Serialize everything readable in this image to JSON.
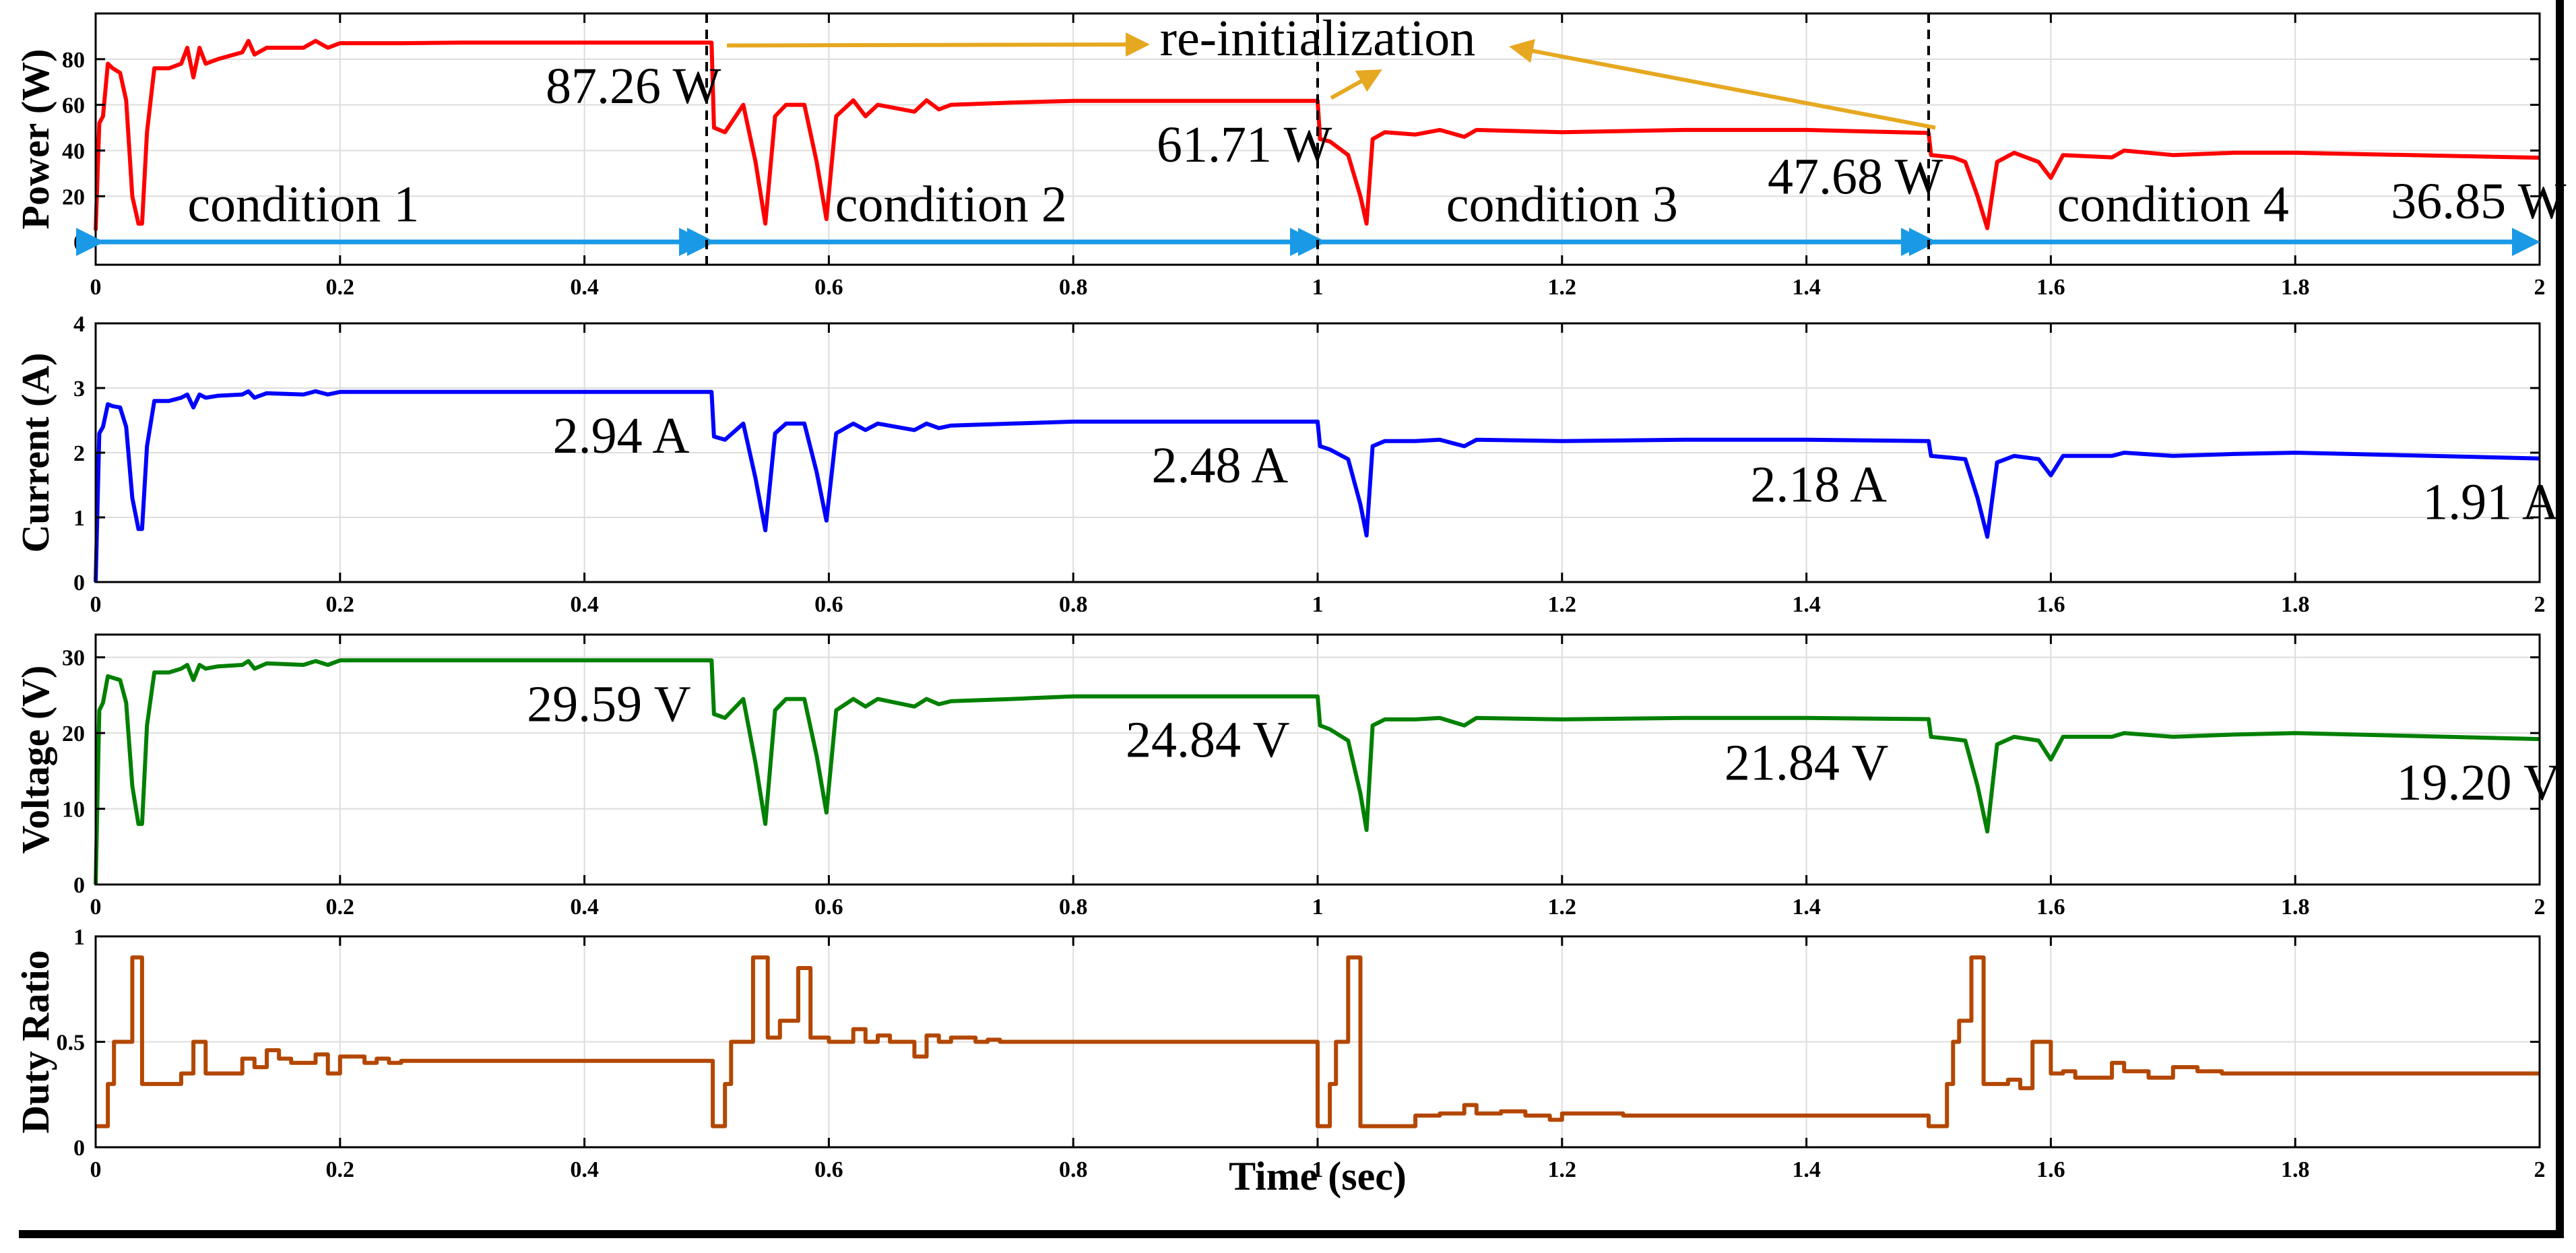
{
  "chart_data": {
    "type": "line",
    "xlabel": "Time (sec)",
    "xlim": [
      0,
      2
    ],
    "xticks": [
      "0",
      "0.2",
      "0.4",
      "0.6",
      "0.8",
      "1",
      "1.2",
      "1.4",
      "1.6",
      "1.8",
      "2"
    ],
    "xtick_values": [
      0,
      0.2,
      0.4,
      0.6,
      0.8,
      1.0,
      1.2,
      1.4,
      1.6,
      1.8,
      2.0
    ],
    "colors": {
      "power": "#ff0000",
      "current": "#0000ff",
      "voltage": "#008000",
      "duty": "#b34700",
      "condition_arrow": "#1a9ae6",
      "reinit_arrow": "#e6a820"
    },
    "panels": [
      {
        "id": "power",
        "ylabel": "Power (W)",
        "ylim": [
          -10,
          100
        ],
        "yticks": [
          "0",
          "20",
          "40",
          "60",
          "80"
        ],
        "ytick_values": [
          0,
          20,
          40,
          60,
          80
        ],
        "series": [
          {
            "name": "Power",
            "x": [
              0,
              0.003,
              0.006,
              0.01,
              0.014,
              0.02,
              0.025,
              0.03,
              0.035,
              0.038,
              0.042,
              0.048,
              0.06,
              0.07,
              0.075,
              0.08,
              0.085,
              0.09,
              0.1,
              0.12,
              0.125,
              0.13,
              0.14,
              0.17,
              0.18,
              0.19,
              0.2,
              0.25,
              0.3,
              0.4,
              0.504,
              0.506,
              0.515,
              0.53,
              0.54,
              0.548,
              0.556,
              0.565,
              0.58,
              0.59,
              0.598,
              0.606,
              0.62,
              0.63,
              0.64,
              0.67,
              0.68,
              0.69,
              0.7,
              0.75,
              0.8,
              1.0,
              1.002,
              1.01,
              1.025,
              1.035,
              1.04,
              1.045,
              1.055,
              1.08,
              1.1,
              1.12,
              1.13,
              1.2,
              1.3,
              1.4,
              1.5,
              1.502,
              1.52,
              1.53,
              1.54,
              1.548,
              1.556,
              1.57,
              1.59,
              1.6,
              1.61,
              1.65,
              1.66,
              1.7,
              1.75,
              1.8,
              2.0
            ],
            "y": [
              5,
              52,
              55,
              78,
              76,
              74,
              62,
              20,
              8,
              8,
              48,
              76,
              76,
              78,
              85,
              72,
              85,
              78,
              80,
              83,
              88,
              82,
              85,
              85,
              88,
              85,
              87,
              87,
              87.26,
              87.26,
              87.26,
              50,
              48,
              60,
              35,
              8,
              55,
              60,
              60,
              35,
              10,
              55,
              62,
              55,
              60,
              57,
              62,
              58,
              60,
              61,
              61.71,
              61.71,
              45,
              44,
              38,
              20,
              8,
              45,
              48,
              47,
              49,
              46,
              49,
              48,
              49,
              49,
              47.68,
              38,
              37,
              35,
              20,
              6,
              35,
              39,
              35,
              28,
              38,
              37,
              40,
              38,
              39,
              39,
              36.85
            ]
          }
        ],
        "annotations": [
          {
            "text": "87.26 W",
            "x": 0.44,
            "y": 87.26
          },
          {
            "text": "61.71 W",
            "x": 0.94,
            "y": 61.71
          },
          {
            "text": "47.68 W",
            "x": 1.44,
            "y": 47.68
          },
          {
            "text": "36.85 W",
            "x": 1.95,
            "y": 36.85
          },
          {
            "text": "condition 1",
            "x": 0.17,
            "y": 9
          },
          {
            "text": "condition 2",
            "x": 0.7,
            "y": 9
          },
          {
            "text": "condition 3",
            "x": 1.2,
            "y": 9
          },
          {
            "text": "condition 4",
            "x": 1.7,
            "y": 9
          },
          {
            "text": "re-initialization",
            "x": 1.0,
            "y": 100
          }
        ],
        "condition_ranges": [
          [
            0,
            0.5
          ],
          [
            0.5,
            1.0
          ],
          [
            1.0,
            1.5
          ],
          [
            1.5,
            2.0
          ]
        ],
        "reinit_times": [
          0.5,
          1.0,
          1.5
        ]
      },
      {
        "id": "current",
        "ylabel": "Current (A)",
        "ylim": [
          0,
          4
        ],
        "yticks": [
          "0",
          "1",
          "2",
          "3",
          "4"
        ],
        "ytick_values": [
          0,
          1,
          2,
          3,
          4
        ],
        "series": [
          {
            "name": "Current",
            "x": [
              0,
              0.003,
              0.006,
              0.01,
              0.014,
              0.02,
              0.025,
              0.03,
              0.035,
              0.038,
              0.042,
              0.048,
              0.06,
              0.07,
              0.075,
              0.08,
              0.085,
              0.09,
              0.1,
              0.12,
              0.125,
              0.13,
              0.14,
              0.17,
              0.18,
              0.19,
              0.2,
              0.25,
              0.3,
              0.4,
              0.504,
              0.506,
              0.515,
              0.53,
              0.54,
              0.548,
              0.556,
              0.565,
              0.58,
              0.59,
              0.598,
              0.606,
              0.62,
              0.63,
              0.64,
              0.67,
              0.68,
              0.69,
              0.7,
              0.75,
              0.8,
              1.0,
              1.002,
              1.01,
              1.025,
              1.035,
              1.04,
              1.045,
              1.055,
              1.08,
              1.1,
              1.12,
              1.13,
              1.2,
              1.3,
              1.4,
              1.5,
              1.502,
              1.52,
              1.53,
              1.54,
              1.548,
              1.556,
              1.57,
              1.59,
              1.6,
              1.61,
              1.65,
              1.66,
              1.7,
              1.75,
              1.8,
              2.0
            ],
            "y": [
              0,
              2.3,
              2.4,
              2.75,
              2.72,
              2.7,
              2.4,
              1.3,
              0.82,
              0.82,
              2.1,
              2.8,
              2.8,
              2.85,
              2.9,
              2.7,
              2.9,
              2.85,
              2.88,
              2.9,
              2.95,
              2.85,
              2.92,
              2.9,
              2.95,
              2.9,
              2.94,
              2.94,
              2.94,
              2.94,
              2.94,
              2.25,
              2.2,
              2.45,
              1.6,
              0.8,
              2.3,
              2.45,
              2.45,
              1.7,
              0.95,
              2.3,
              2.45,
              2.35,
              2.45,
              2.35,
              2.45,
              2.38,
              2.42,
              2.45,
              2.48,
              2.48,
              2.1,
              2.05,
              1.9,
              1.2,
              0.72,
              2.1,
              2.18,
              2.18,
              2.2,
              2.1,
              2.2,
              2.18,
              2.2,
              2.2,
              2.18,
              1.95,
              1.92,
              1.9,
              1.3,
              0.7,
              1.85,
              1.95,
              1.9,
              1.65,
              1.95,
              1.95,
              2.0,
              1.95,
              1.98,
              2.0,
              1.91
            ]
          }
        ],
        "annotations": [
          {
            "text": "2.94 A",
            "x": 0.43,
            "y": 2.94
          },
          {
            "text": "2.48 A",
            "x": 0.92,
            "y": 2.48
          },
          {
            "text": "2.18 A",
            "x": 1.41,
            "y": 2.18
          },
          {
            "text": "1.91 A",
            "x": 1.96,
            "y": 1.91
          }
        ]
      },
      {
        "id": "voltage",
        "ylabel": "Voltage (V)",
        "ylim": [
          0,
          33
        ],
        "yticks": [
          "0",
          "10",
          "20",
          "30"
        ],
        "ytick_values": [
          0,
          10,
          20,
          30
        ],
        "series": [
          {
            "name": "Voltage",
            "x": [
              0,
              0.003,
              0.006,
              0.01,
              0.014,
              0.02,
              0.025,
              0.03,
              0.035,
              0.038,
              0.042,
              0.048,
              0.06,
              0.07,
              0.075,
              0.08,
              0.085,
              0.09,
              0.1,
              0.12,
              0.125,
              0.13,
              0.14,
              0.17,
              0.18,
              0.19,
              0.2,
              0.25,
              0.3,
              0.4,
              0.504,
              0.506,
              0.515,
              0.53,
              0.54,
              0.548,
              0.556,
              0.565,
              0.58,
              0.59,
              0.598,
              0.606,
              0.62,
              0.63,
              0.64,
              0.67,
              0.68,
              0.69,
              0.7,
              0.75,
              0.8,
              1.0,
              1.002,
              1.01,
              1.025,
              1.035,
              1.04,
              1.045,
              1.055,
              1.08,
              1.1,
              1.12,
              1.13,
              1.2,
              1.3,
              1.4,
              1.5,
              1.502,
              1.52,
              1.53,
              1.54,
              1.548,
              1.556,
              1.57,
              1.59,
              1.6,
              1.61,
              1.65,
              1.66,
              1.7,
              1.75,
              1.8,
              2.0
            ],
            "y": [
              0,
              23,
              24,
              27.5,
              27.3,
              27,
              24,
              13,
              8,
              8,
              21,
              28,
              28,
              28.5,
              29,
              27,
              29,
              28.5,
              28.8,
              29,
              29.5,
              28.5,
              29.2,
              29,
              29.5,
              29,
              29.59,
              29.59,
              29.59,
              29.59,
              29.59,
              22.5,
              22,
              24.5,
              16,
              8,
              23,
              24.5,
              24.5,
              17,
              9.5,
              23,
              24.5,
              23.5,
              24.5,
              23.5,
              24.5,
              23.8,
              24.2,
              24.5,
              24.84,
              24.84,
              21,
              20.5,
              19,
              12,
              7.2,
              21,
              21.8,
              21.8,
              22,
              21,
              22,
              21.8,
              22,
              22,
              21.84,
              19.5,
              19.2,
              19,
              13,
              7,
              18.5,
              19.5,
              19,
              16.5,
              19.5,
              19.5,
              20,
              19.5,
              19.8,
              20,
              19.2
            ]
          }
        ],
        "annotations": [
          {
            "text": "29.59 V",
            "x": 0.42,
            "y": 29.59
          },
          {
            "text": "24.84 V",
            "x": 0.91,
            "y": 24.84
          },
          {
            "text": "21.84 V",
            "x": 1.4,
            "y": 21.84
          },
          {
            "text": "19.20 V",
            "x": 1.95,
            "y": 19.2
          }
        ]
      },
      {
        "id": "duty",
        "ylabel": "Duty Ratio",
        "ylim": [
          0,
          1
        ],
        "yticks": [
          "0",
          "0.5",
          "1"
        ],
        "ytick_values": [
          0,
          0.5,
          1
        ],
        "series": [
          {
            "name": "Duty Ratio",
            "step": true,
            "x": [
              0,
              0.01,
              0.015,
              0.022,
              0.03,
              0.038,
              0.045,
              0.07,
              0.08,
              0.09,
              0.1,
              0.12,
              0.13,
              0.14,
              0.15,
              0.16,
              0.18,
              0.19,
              0.2,
              0.22,
              0.23,
              0.24,
              0.25,
              0.3,
              0.4,
              0.5,
              0.505,
              0.515,
              0.52,
              0.53,
              0.538,
              0.55,
              0.56,
              0.575,
              0.585,
              0.6,
              0.62,
              0.63,
              0.64,
              0.65,
              0.67,
              0.68,
              0.69,
              0.7,
              0.72,
              0.73,
              0.74,
              0.75,
              0.8,
              0.95,
              1.0,
              1.01,
              1.015,
              1.025,
              1.035,
              1.045,
              1.05,
              1.08,
              1.1,
              1.12,
              1.13,
              1.15,
              1.17,
              1.19,
              1.2,
              1.25,
              1.3,
              1.4,
              1.5,
              1.515,
              1.52,
              1.525,
              1.535,
              1.545,
              1.555,
              1.565,
              1.575,
              1.585,
              1.6,
              1.61,
              1.62,
              1.65,
              1.66,
              1.68,
              1.7,
              1.72,
              1.74,
              1.75,
              1.8,
              2.0
            ],
            "y": [
              0.1,
              0.3,
              0.5,
              0.5,
              0.9,
              0.3,
              0.3,
              0.35,
              0.5,
              0.35,
              0.35,
              0.42,
              0.38,
              0.46,
              0.42,
              0.4,
              0.44,
              0.35,
              0.43,
              0.4,
              0.42,
              0.4,
              0.41,
              0.41,
              0.41,
              0.41,
              0.1,
              0.3,
              0.5,
              0.5,
              0.9,
              0.52,
              0.6,
              0.85,
              0.52,
              0.5,
              0.56,
              0.5,
              0.53,
              0.5,
              0.43,
              0.53,
              0.5,
              0.52,
              0.5,
              0.51,
              0.5,
              0.5,
              0.5,
              0.5,
              0.1,
              0.3,
              0.5,
              0.9,
              0.1,
              0.1,
              0.1,
              0.15,
              0.16,
              0.2,
              0.16,
              0.17,
              0.15,
              0.13,
              0.16,
              0.15,
              0.15,
              0.15,
              0.1,
              0.3,
              0.5,
              0.6,
              0.9,
              0.3,
              0.3,
              0.32,
              0.28,
              0.5,
              0.35,
              0.36,
              0.33,
              0.4,
              0.36,
              0.33,
              0.38,
              0.36,
              0.35,
              0.35,
              0.35,
              0.35
            ]
          }
        ]
      }
    ]
  }
}
